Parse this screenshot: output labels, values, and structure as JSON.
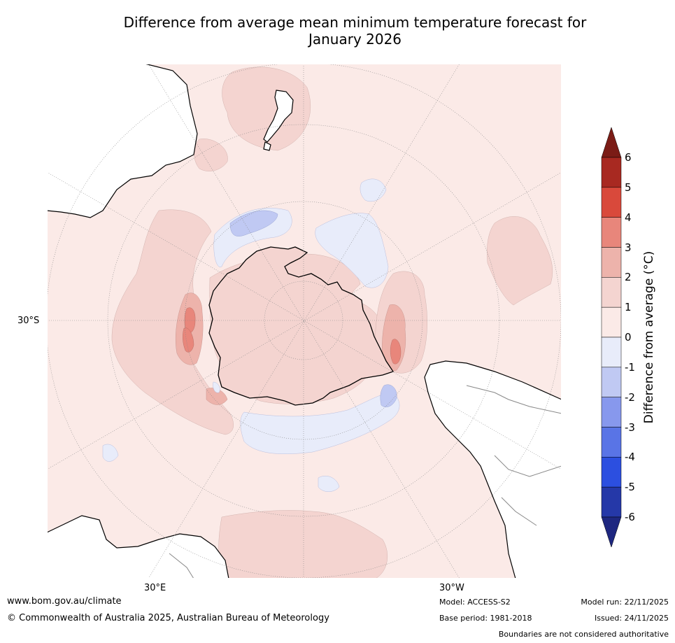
{
  "title_line1": "Difference from average mean minimum temperature forecast for",
  "title_line2": "January 2026",
  "map": {
    "lat_labels": [
      "30°S"
    ],
    "lon_labels": [
      "30°E",
      "30°W"
    ],
    "land_color": "#ffffff",
    "coast_color": "#000000",
    "border_color": "#888888"
  },
  "colorbar": {
    "label": "Difference from average (°C)",
    "ticks": [
      "6",
      "5",
      "4",
      "3",
      "2",
      "1",
      "0",
      "-1",
      "-2",
      "-3",
      "-4",
      "-5",
      "-6"
    ],
    "levels": [
      {
        "range": ">6",
        "color": "#7b1c16"
      },
      {
        "range": "5 to 6",
        "color": "#a82921"
      },
      {
        "range": "4 to 5",
        "color": "#d9493b"
      },
      {
        "range": "3 to 4",
        "color": "#e8867b"
      },
      {
        "range": "2 to 3",
        "color": "#edb3ab"
      },
      {
        "range": "1 to 2",
        "color": "#f4d4d0"
      },
      {
        "range": "0 to 1",
        "color": "#fbeae7"
      },
      {
        "range": "-1 to 0",
        "color": "#e8ecfa"
      },
      {
        "range": "-2 to -1",
        "color": "#c0c9f3"
      },
      {
        "range": "-3 to -2",
        "color": "#8798ed"
      },
      {
        "range": "-4 to -3",
        "color": "#5974e6"
      },
      {
        "range": "-5 to -4",
        "color": "#2c4fe0"
      },
      {
        "range": "-6 to -5",
        "color": "#2538a8"
      },
      {
        "range": "<-6",
        "color": "#1e2780"
      }
    ]
  },
  "footer": {
    "url": "www.bom.gov.au/climate",
    "copyright": "© Commonwealth of Australia 2025, Australian Bureau of Meteorology",
    "model": "Model: ACCESS-S2",
    "base_period": "Base period: 1981-2018",
    "model_run": "Model run: 22/11/2025",
    "issued": "Issued: 24/11/2025",
    "disclaimer": "Boundaries are not considered authoritative"
  }
}
